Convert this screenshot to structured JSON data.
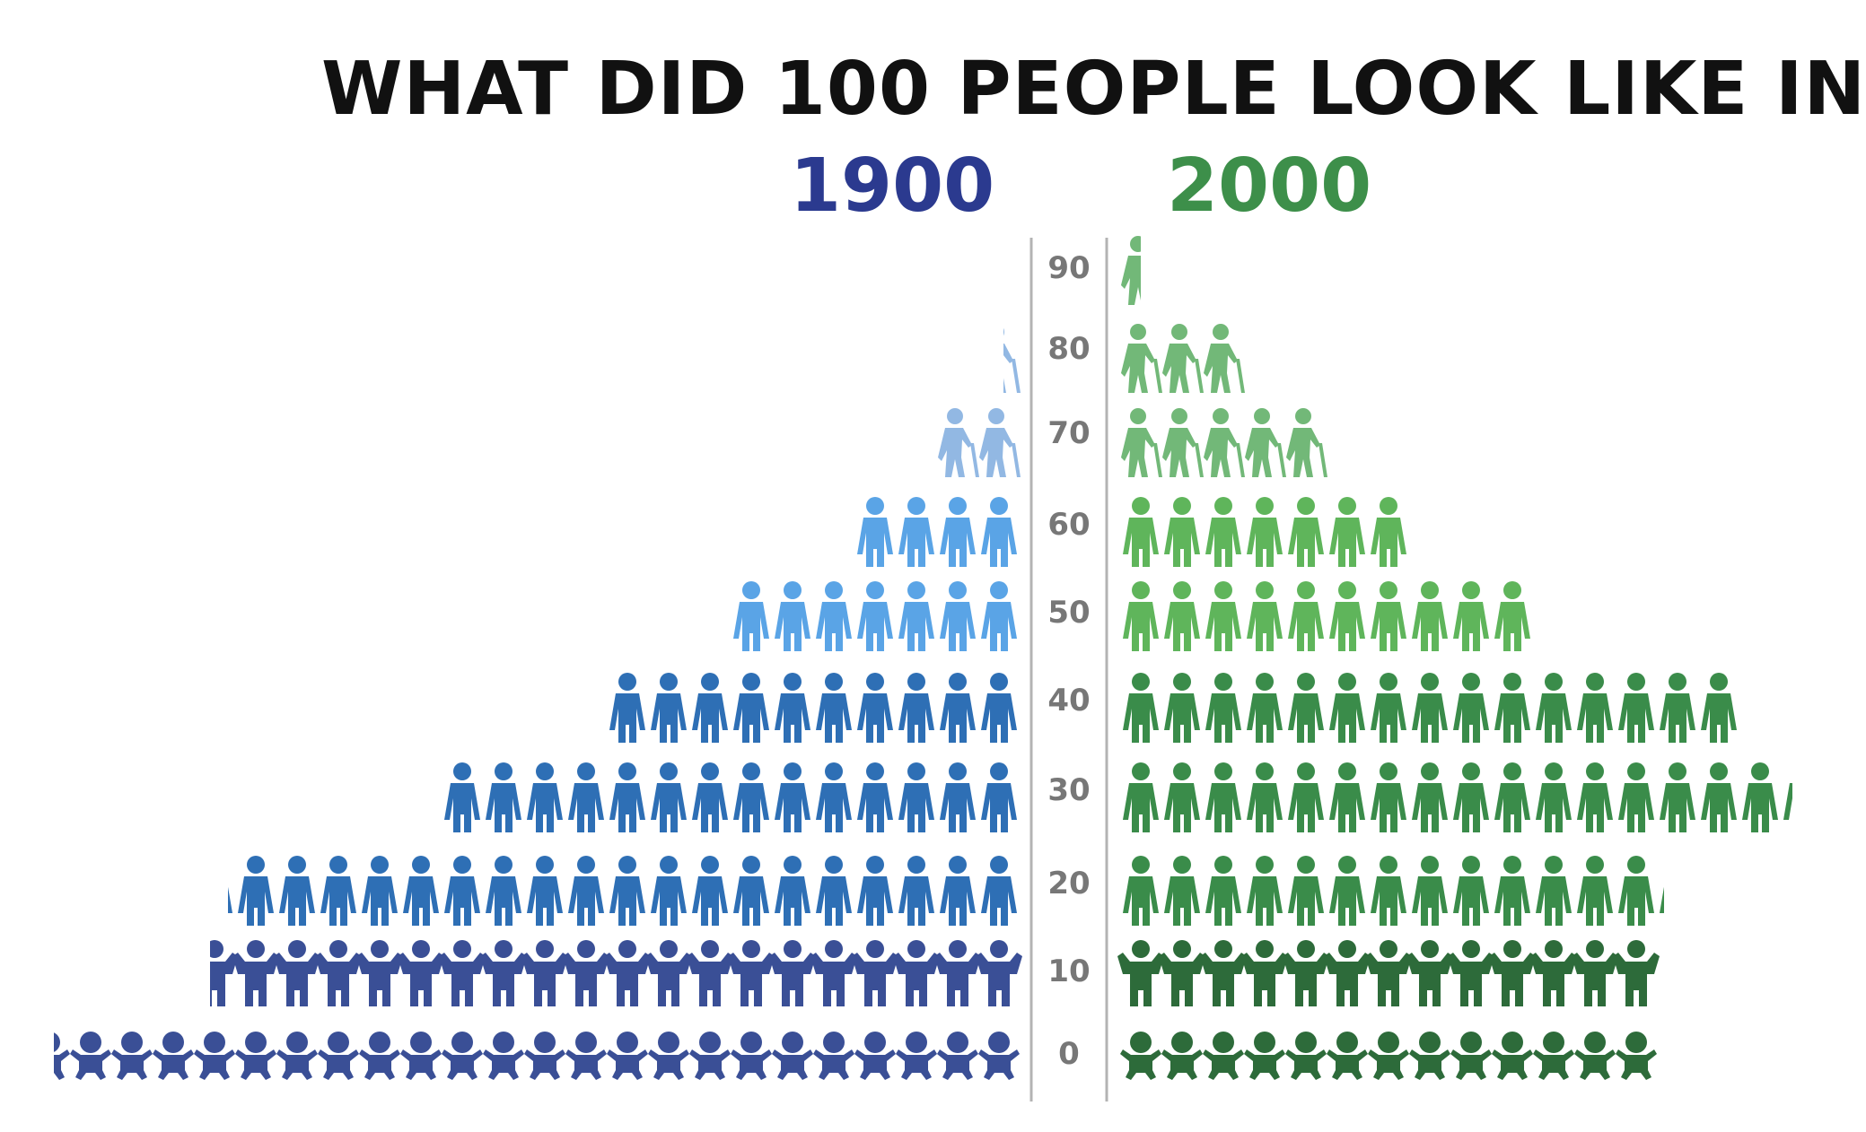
{
  "title": "WHAT DID 100 PEOPLE LOOK LIKE IN",
  "series_labels": [
    {
      "text": "1900",
      "color": "#2b3a8f"
    },
    {
      "text": "2000",
      "color": "#3d8f4a"
    }
  ],
  "chart_data": {
    "type": "pictogram-pyramid",
    "title": "WHAT DID 100 PEOPLE LOOK LIKE IN",
    "x_unit": "people (out of 100)",
    "age_groups": [
      "0",
      "10",
      "20",
      "30",
      "40",
      "50",
      "60",
      "70",
      "80",
      "90"
    ],
    "series": [
      {
        "name": "1900",
        "side": "left",
        "values": [
          23.4,
          19.6,
          19.2,
          13.9,
          10,
          7,
          4,
          2,
          0.4,
          0
        ],
        "colors": [
          "#3a4f96",
          "#3a4f96",
          "#2e6fb5",
          "#2e6fb5",
          "#2e6fb5",
          "#5aa4e6",
          "#5aa4e6",
          "#92b8e3",
          "#92b8e3",
          "#92b8e3"
        ]
      },
      {
        "name": "2000",
        "side": "right",
        "values": [
          13,
          13,
          13.2,
          16.3,
          15,
          10,
          7,
          5,
          3,
          0.5
        ],
        "colors": [
          "#2d6b3a",
          "#2d6b3a",
          "#3a8c4a",
          "#3a8c4a",
          "#3a8c4a",
          "#5fb55b",
          "#5fb55b",
          "#72b878",
          "#72b878",
          "#72b878"
        ]
      }
    ],
    "icon_types": [
      "baby",
      "child",
      "adult",
      "adult",
      "adult",
      "adult",
      "adult",
      "elder",
      "elder",
      "elder"
    ],
    "grid": false,
    "legend": "none"
  }
}
